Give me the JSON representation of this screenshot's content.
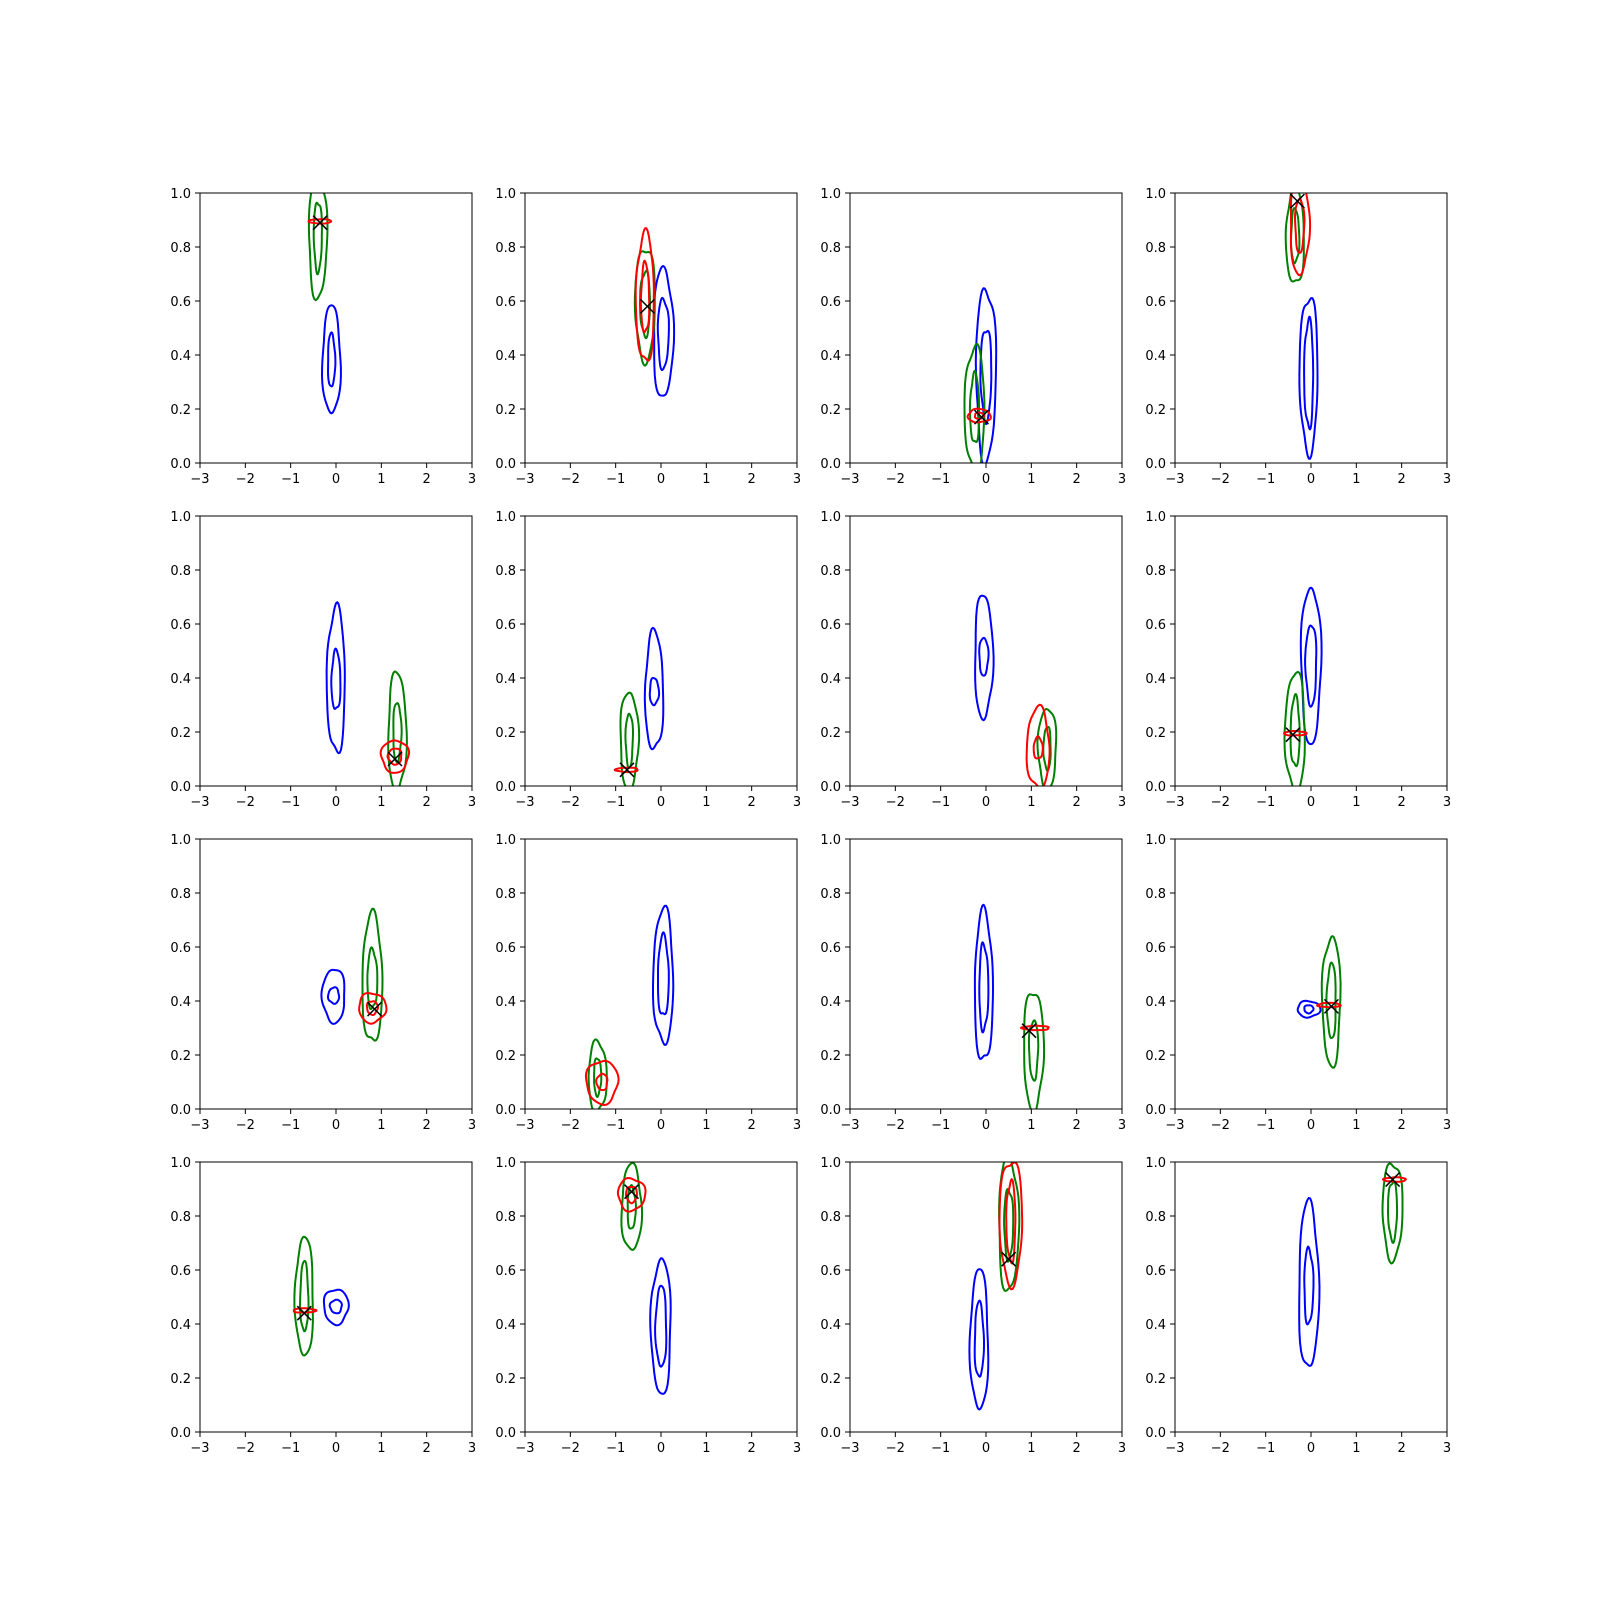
{
  "chart_data": {
    "type": "contour",
    "title": "",
    "grid": false,
    "panels_layout": "4x4",
    "x_ticks": [
      "−3",
      "−2",
      "−1",
      "0",
      "1",
      "2",
      "3"
    ],
    "y_ticks": [
      "0.0",
      "0.2",
      "0.4",
      "0.6",
      "0.8",
      "1.0"
    ],
    "xlim": [
      -3,
      3
    ],
    "ylim": [
      0,
      1
    ],
    "colors": {
      "blue": "#0000ff",
      "green": "#008000",
      "red": "#ff0000",
      "marker": "#000000"
    },
    "series_colors": [
      "blue",
      "green",
      "red"
    ],
    "marker_shape": "x",
    "panels": [
      {
        "contours": [
          {
            "color": "blue",
            "cx": -0.1,
            "cy": 0.38,
            "rx": [
              0.2,
              0.08
            ],
            "ry": [
              0.2,
              0.1
            ]
          },
          {
            "color": "green",
            "cx": -0.4,
            "cy": 0.84,
            "rx": [
              0.2,
              0.09
            ],
            "ry": [
              0.23,
              0.13
            ]
          },
          {
            "color": "red",
            "cx": -0.35,
            "cy": 0.895,
            "rx": [
              0.25
            ],
            "ry": [
              0.008
            ]
          }
        ],
        "marker": [
          -0.35,
          0.89
        ]
      },
      {
        "contours": [
          {
            "color": "blue",
            "cx": 0.05,
            "cy": 0.48,
            "rx": [
              0.22,
              0.12
            ],
            "ry": [
              0.24,
              0.13
            ]
          },
          {
            "color": "green",
            "cx": -0.35,
            "cy": 0.59,
            "rx": [
              0.22,
              0.11
            ],
            "ry": [
              0.21,
              0.12
            ]
          },
          {
            "color": "red",
            "cx": -0.35,
            "cy": 0.61,
            "rx": [
              0.2,
              0.09
            ],
            "ry": [
              0.24,
              0.13
            ]
          }
        ],
        "marker": [
          -0.3,
          0.58
        ]
      },
      {
        "contours": [
          {
            "color": "blue",
            "cx": 0.0,
            "cy": 0.33,
            "rx": [
              0.22,
              0.12
            ],
            "ry": [
              0.32,
              0.17
            ]
          },
          {
            "color": "green",
            "cx": -0.25,
            "cy": 0.2,
            "rx": [
              0.22,
              0.1
            ],
            "ry": [
              0.23,
              0.13
            ]
          },
          {
            "color": "red",
            "cx": -0.15,
            "cy": 0.175,
            "rx": [
              0.25,
              0.1
            ],
            "ry": [
              0.025,
              0.012
            ]
          }
        ],
        "marker": [
          -0.1,
          0.17
        ]
      },
      {
        "contours": [
          {
            "color": "blue",
            "cx": -0.05,
            "cy": 0.33,
            "rx": [
              0.2,
              0.1
            ],
            "ry": [
              0.29,
              0.2
            ]
          },
          {
            "color": "green",
            "cx": -0.35,
            "cy": 0.84,
            "rx": [
              0.2,
              0.09
            ],
            "ry": [
              0.18,
              0.1
            ]
          },
          {
            "color": "red",
            "cx": -0.25,
            "cy": 0.88,
            "rx": [
              0.21,
              0.1
            ],
            "ry": [
              0.18,
              0.1
            ]
          }
        ],
        "marker": [
          -0.3,
          0.97
        ]
      },
      {
        "contours": [
          {
            "color": "blue",
            "cx": 0.0,
            "cy": 0.39,
            "rx": [
              0.2,
              0.1
            ],
            "ry": [
              0.27,
              0.11
            ]
          },
          {
            "color": "green",
            "cx": 1.35,
            "cy": 0.2,
            "rx": [
              0.2,
              0.09
            ],
            "ry": [
              0.22,
              0.11
            ]
          },
          {
            "color": "red",
            "cx": 1.3,
            "cy": 0.11,
            "rx": [
              0.3,
              0.15
            ],
            "ry": [
              0.06,
              0.03
            ]
          }
        ],
        "marker": [
          1.3,
          0.1
        ]
      },
      {
        "contours": [
          {
            "color": "blue",
            "cx": -0.15,
            "cy": 0.35,
            "rx": [
              0.2,
              0.1
            ],
            "ry": [
              0.22,
              0.05
            ]
          },
          {
            "color": "green",
            "cx": -0.7,
            "cy": 0.17,
            "rx": [
              0.2,
              0.08
            ],
            "ry": [
              0.18,
              0.1
            ]
          },
          {
            "color": "red",
            "cx": -0.75,
            "cy": 0.06,
            "rx": [
              0.25
            ],
            "ry": [
              0.008
            ]
          }
        ],
        "marker": [
          -0.75,
          0.06
        ]
      },
      {
        "contours": [
          {
            "color": "blue",
            "cx": -0.05,
            "cy": 0.48,
            "rx": [
              0.2,
              0.1
            ],
            "ry": [
              0.23,
              0.07
            ]
          },
          {
            "color": "green",
            "cx": 1.35,
            "cy": 0.14,
            "rx": [
              0.2,
              0.08
            ],
            "ry": [
              0.15,
              0.08
            ]
          },
          {
            "color": "red",
            "cx": 1.15,
            "cy": 0.14,
            "rx": [
              0.25,
              0.1
            ],
            "ry": [
              0.15,
              0.04
            ]
          }
        ],
        "marker": null
      },
      {
        "contours": [
          {
            "color": "blue",
            "cx": 0.0,
            "cy": 0.45,
            "rx": [
              0.22,
              0.12
            ],
            "ry": [
              0.29,
              0.15
            ]
          },
          {
            "color": "green",
            "cx": -0.35,
            "cy": 0.2,
            "rx": [
              0.22,
              0.1
            ],
            "ry": [
              0.22,
              0.13
            ]
          },
          {
            "color": "red",
            "cx": -0.35,
            "cy": 0.195,
            "rx": [
              0.25
            ],
            "ry": [
              0.008
            ]
          }
        ],
        "marker": [
          -0.4,
          0.19
        ]
      },
      {
        "contours": [
          {
            "color": "blue",
            "cx": -0.05,
            "cy": 0.42,
            "rx": [
              0.25,
              0.12
            ],
            "ry": [
              0.1,
              0.03
            ]
          },
          {
            "color": "green",
            "cx": 0.8,
            "cy": 0.48,
            "rx": [
              0.22,
              0.11
            ],
            "ry": [
              0.24,
              0.11
            ]
          },
          {
            "color": "red",
            "cx": 0.8,
            "cy": 0.375,
            "rx": [
              0.3,
              0.12
            ],
            "ry": [
              0.055,
              0.025
            ]
          }
        ],
        "marker": [
          0.85,
          0.37
        ]
      },
      {
        "contours": [
          {
            "color": "blue",
            "cx": 0.05,
            "cy": 0.49,
            "rx": [
              0.22,
              0.12
            ],
            "ry": [
              0.25,
              0.15
            ]
          },
          {
            "color": "green",
            "cx": -1.4,
            "cy": 0.12,
            "rx": [
              0.2,
              0.08
            ],
            "ry": [
              0.13,
              0.07
            ]
          },
          {
            "color": "red",
            "cx": -1.3,
            "cy": 0.1,
            "rx": [
              0.35,
              0.12
            ],
            "ry": [
              0.08,
              0.03
            ]
          }
        ],
        "marker": null
      },
      {
        "contours": [
          {
            "color": "blue",
            "cx": -0.05,
            "cy": 0.45,
            "rx": [
              0.2,
              0.1
            ],
            "ry": [
              0.28,
              0.16
            ]
          },
          {
            "color": "green",
            "cx": 1.05,
            "cy": 0.22,
            "rx": [
              0.22,
              0.1
            ],
            "ry": [
              0.22,
              0.11
            ]
          },
          {
            "color": "red",
            "cx": 1.1,
            "cy": 0.3,
            "rx": [
              0.3
            ],
            "ry": [
              0.008
            ]
          }
        ],
        "marker": [
          0.95,
          0.29
        ]
      },
      {
        "contours": [
          {
            "color": "blue",
            "cx": -0.05,
            "cy": 0.37,
            "rx": [
              0.25,
              0.1
            ],
            "ry": [
              0.03,
              0.015
            ]
          },
          {
            "color": "green",
            "cx": 0.45,
            "cy": 0.4,
            "rx": [
              0.2,
              0.1
            ],
            "ry": [
              0.24,
              0.14
            ]
          },
          {
            "color": "red",
            "cx": 0.4,
            "cy": 0.385,
            "rx": [
              0.25
            ],
            "ry": [
              0.008
            ]
          }
        ],
        "marker": [
          0.45,
          0.38
        ]
      },
      {
        "contours": [
          {
            "color": "blue",
            "cx": 0.0,
            "cy": 0.465,
            "rx": [
              0.27,
              0.13
            ],
            "ry": [
              0.065,
              0.025
            ]
          },
          {
            "color": "green",
            "cx": -0.7,
            "cy": 0.5,
            "rx": [
              0.2,
              0.09
            ],
            "ry": [
              0.22,
              0.13
            ]
          },
          {
            "color": "red",
            "cx": -0.7,
            "cy": 0.45,
            "rx": [
              0.25
            ],
            "ry": [
              0.008
            ]
          }
        ],
        "marker": [
          -0.7,
          0.44
        ]
      },
      {
        "contours": [
          {
            "color": "blue",
            "cx": 0.0,
            "cy": 0.39,
            "rx": [
              0.22,
              0.12
            ],
            "ry": [
              0.25,
              0.15
            ]
          },
          {
            "color": "green",
            "cx": -0.65,
            "cy": 0.83,
            "rx": [
              0.22,
              0.09
            ],
            "ry": [
              0.16,
              0.08
            ]
          },
          {
            "color": "red",
            "cx": -0.65,
            "cy": 0.88,
            "rx": [
              0.3,
              0.12
            ],
            "ry": [
              0.06,
              0.03
            ]
          }
        ],
        "marker": [
          -0.65,
          0.89
        ]
      },
      {
        "contours": [
          {
            "color": "blue",
            "cx": -0.15,
            "cy": 0.34,
            "rx": [
              0.2,
              0.1
            ],
            "ry": [
              0.26,
              0.14
            ]
          },
          {
            "color": "green",
            "cx": 0.5,
            "cy": 0.77,
            "rx": [
              0.22,
              0.1
            ],
            "ry": [
              0.25,
              0.13
            ]
          },
          {
            "color": "red",
            "cx": 0.55,
            "cy": 0.78,
            "rx": [
              0.25,
              0.1
            ],
            "ry": [
              0.23,
              0.15
            ]
          }
        ],
        "marker": [
          0.5,
          0.64
        ]
      },
      {
        "contours": [
          {
            "color": "blue",
            "cx": -0.05,
            "cy": 0.54,
            "rx": [
              0.22,
              0.1
            ],
            "ry": [
              0.31,
              0.14
            ]
          },
          {
            "color": "green",
            "cx": 1.8,
            "cy": 0.82,
            "rx": [
              0.22,
              0.1
            ],
            "ry": [
              0.18,
              0.11
            ]
          },
          {
            "color": "red",
            "cx": 1.85,
            "cy": 0.935,
            "rx": [
              0.25
            ],
            "ry": [
              0.008
            ]
          }
        ],
        "marker": [
          1.8,
          0.935
        ]
      }
    ]
  }
}
